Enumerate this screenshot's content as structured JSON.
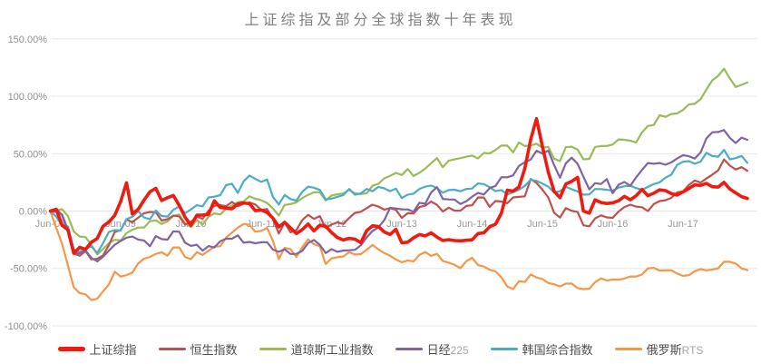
{
  "title": "上证综指及部分全球指数十年表现",
  "chart_data": {
    "type": "line",
    "title": "上证综指及部分全球指数十年表现",
    "xlabel": "",
    "ylabel": "",
    "ylim": [
      -100,
      150
    ],
    "grid": "horizontal",
    "legend_position": "bottom",
    "y_ticks": [
      {
        "value": 150,
        "label": "150.00%"
      },
      {
        "value": 100,
        "label": "100.00%"
      },
      {
        "value": 50,
        "label": "50.00%"
      },
      {
        "value": 0,
        "label": "0.00%"
      },
      {
        "value": -50,
        "label": "-50.00%"
      },
      {
        "value": -100,
        "label": "-100.00%"
      }
    ],
    "x_tick_labels": [
      "Jun-08",
      "Jun-09",
      "Jun-10",
      "Jun-11",
      "Jun-12",
      "Jun-13",
      "Jun-14",
      "Jun-15",
      "Jun-16",
      "Jun-17"
    ],
    "x_months_per_point": 1,
    "series": [
      {
        "id": "sse",
        "name": "上证综指",
        "color": "#ED1B10",
        "width": 3.6,
        "values": [
          0,
          1.5,
          -12.4,
          -16.2,
          -36.8,
          -31.6,
          -33.4,
          -27.2,
          -23.9,
          -13.3,
          -9.4,
          -3.8,
          8.2,
          24.7,
          -2.5,
          1.6,
          9.5,
          16.8,
          19.8,
          9.2,
          11.6,
          13.6,
          4.9,
          -5.3,
          -12.4,
          -3.6,
          -3.5,
          -2.9,
          8.9,
          3.1,
          2.6,
          2.0,
          6.2,
          7.0,
          6.4,
          0.3,
          0.9,
          -1.3,
          -6.2,
          -13.8,
          -9.8,
          -14.7,
          -19.6,
          -16.2,
          -11.3,
          -17.3,
          -12.4,
          -13.3,
          -18.7,
          -23.1,
          -25.2,
          -23.8,
          -24.4,
          -27.6,
          -17.1,
          -12.8,
          -13.6,
          -18.2,
          -20.4,
          -15.9,
          -27.7,
          -27.1,
          -23.3,
          -20.5,
          -21.7,
          -18.9,
          -22.7,
          -25.7,
          -24.9,
          -25.7,
          -25.9,
          -25.5,
          -25.1,
          -19.6,
          -19.0,
          -13.6,
          -11.5,
          -1.9,
          18.2,
          17.3,
          21.0,
          37.0,
          62.3,
          80.5,
          56.3,
          33.9,
          17.2,
          11.6,
          23.6,
          25.9,
          29.3,
          0.1,
          -1.8,
          9.8,
          7.4,
          6.6,
          7.1,
          8.9,
          12.8,
          9.8,
          13.3,
          18.8,
          13.4,
          15.5,
          18.5,
          17.8,
          15.3,
          13.9,
          16.7,
          19.6,
          22.8,
          22.4,
          24.0,
          21.2,
          20.9,
          25.0,
          19.1,
          15.8,
          12.6,
          11.0
        ]
      },
      {
        "id": "hsi",
        "name": "恒生指数",
        "color": "#C0504D",
        "width": 2.2,
        "values": [
          0,
          2.0,
          -3.6,
          -18.6,
          -37.1,
          -38.9,
          -34.9,
          -42.1,
          -41.6,
          -38.7,
          -29.6,
          -18.3,
          -16.6,
          -7.3,
          -9.8,
          -5.7,
          -1.9,
          -0.8,
          -1.1,
          -8.3,
          -7.1,
          -3.9,
          -4.7,
          -11.8,
          -9.3,
          -4.9,
          -6.7,
          0.2,
          4.5,
          5.2,
          4.2,
          7.9,
          4.3,
          6.3,
          7.4,
          5.7,
          1.0,
          1.7,
          -6.9,
          -19.7,
          -9.9,
          -18.6,
          -16.6,
          -7.8,
          -3.3,
          -6.8,
          -4.4,
          -14.6,
          -11.8,
          -9.9,
          -11.2,
          -6.1,
          -1.6,
          -0.6,
          2.5,
          5.5,
          3.9,
          1.3,
          2.5,
          1.0,
          -5.9,
          -1.9,
          -2.1,
          3.5,
          4.7,
          8.3,
          5.4,
          -0.4,
          2.9,
          0.4,
          0.2,
          4.4,
          5.0,
          11.9,
          11.8,
          3.6,
          8.8,
          8.3,
          6.8,
          11.9,
          12.3,
          12.8,
          27.8,
          24.5,
          18.7,
          11.9,
          -1.5,
          -5.7,
          2.5,
          0.2,
          -0.9,
          -12.4,
          -13.3,
          -6.4,
          -3.7,
          -5.5,
          -5.9,
          -0.4,
          3.5,
          5.5,
          3.9,
          3.3,
          0.0,
          6.0,
          8.7,
          9.4,
          11.5,
          16.3,
          17.0,
          22.8,
          26.6,
          24.8,
          28.3,
          31.7,
          35.4,
          45.0,
          39.5,
          36.2,
          38.2,
          35.0
        ]
      },
      {
        "id": "djia",
        "name": "道琼斯工业指数",
        "color": "#9BBB59",
        "width": 2.2,
        "values": [
          0,
          0.2,
          1.7,
          -4.4,
          -17.8,
          -22.2,
          -22.7,
          -29.5,
          -37.8,
          -33.0,
          -28.0,
          -25.1,
          -25.6,
          -19.2,
          -16.3,
          -14.4,
          -14.4,
          -8.9,
          -8.1,
          -11.3,
          -9.0,
          -4.3,
          -3.0,
          -10.7,
          -13.9,
          -7.8,
          -11.8,
          -5.0,
          -2.0,
          -3.0,
          2.0,
          4.8,
          7.7,
          8.5,
          12.9,
          10.7,
          9.4,
          7.0,
          2.3,
          -3.9,
          5.3,
          6.1,
          7.6,
          11.3,
          14.1,
          16.4,
          16.4,
          9.2,
          13.5,
          14.6,
          15.3,
          18.4,
          15.4,
          14.8,
          15.5,
          22.1,
          23.8,
          28.5,
          30.7,
          33.2,
          31.4,
          36.6,
          30.5,
          33.3,
          37.0,
          41.7,
          46.1,
          38.3,
          43.8,
          45.0,
          46.1,
          47.3,
          48.3,
          45.9,
          50.6,
          50.2,
          53.2,
          57.1,
          57.0,
          51.2,
          59.8,
          56.6,
          57.2,
          58.7,
          55.2,
          55.9,
          45.6,
          43.5,
          55.6,
          56.1,
          53.5,
          45.1,
          45.5,
          55.8,
          56.6,
          56.7,
          58.0,
          62.4,
          62.1,
          61.3,
          59.8,
          68.5,
          74.1,
          75.0,
          83.4,
          82.1,
          84.5,
          85.1,
          88.1,
          92.9,
          93.4,
          97.4,
          106.0,
          113.9,
          117.8,
          124.0,
          115.5,
          108.0,
          110.0,
          112.0
        ]
      },
      {
        "id": "nikkei",
        "name": "日经225",
        "color": "#8064A2",
        "width": 2.2,
        "values": [
          0,
          -0.8,
          -3.0,
          -16.5,
          -36.4,
          -36.9,
          -34.3,
          -40.7,
          -43.9,
          -39.8,
          -34.5,
          -29.4,
          -26.1,
          -23.2,
          -22.2,
          -24.8,
          -25.6,
          -30.7,
          -21.8,
          -24.4,
          -24.9,
          -17.7,
          -18.0,
          -27.5,
          -30.4,
          -29.3,
          -34.5,
          -30.5,
          -31.7,
          -26.3,
          -24.1,
          -24.1,
          -21.2,
          -27.6,
          -26.9,
          -28.1,
          -27.2,
          -27.1,
          -33.6,
          -35.5,
          -33.3,
          -37.4,
          -37.3,
          -34.7,
          -27.9,
          -25.2,
          -29.4,
          -36.6,
          -33.2,
          -35.5,
          -34.4,
          -34.2,
          -33.8,
          -29.9,
          -22.9,
          -17.4,
          -14.3,
          -8.0,
          2.8,
          2.2,
          1.5,
          1.4,
          -0.7,
          7.2,
          6.3,
          16.2,
          20.8,
          10.6,
          10.1,
          10.0,
          6.1,
          8.5,
          12.5,
          15.9,
          14.4,
          20.0,
          21.8,
          29.5,
          29.4,
          31.1,
          39.4,
          42.5,
          44.8,
          52.5,
          50.1,
          52.7,
          40.1,
          29.0,
          41.6,
          46.5,
          41.2,
          29.9,
          18.9,
          24.3,
          23.6,
          27.8,
          15.5,
          22.9,
          25.3,
          22.0,
          29.3,
          35.8,
          41.8,
          41.2,
          41.8,
          40.3,
          42.4,
          45.8,
          48.6,
          47.8,
          45.7,
          51.0,
          63.3,
          68.6,
          68.9,
          70.5,
          63.7,
          59.2,
          64.0,
          62.0
        ]
      },
      {
        "id": "kospi",
        "name": "韩国综合指数",
        "color": "#4BACC6",
        "width": 2.2,
        "values": [
          0,
          -4.8,
          -12.0,
          -13.5,
          -33.5,
          -35.7,
          -32.9,
          -30.6,
          -36.5,
          -28.0,
          -18.2,
          -16.6,
          -17.0,
          -7.0,
          -5.0,
          -0.1,
          -5.6,
          -7.1,
          0.5,
          -4.3,
          -4.8,
          1.1,
          4.0,
          -2.0,
          1.4,
          5.1,
          4.1,
          11.9,
          12.5,
          13.8,
          22.5,
          23.7,
          15.8,
          25.9,
          30.9,
          28.0,
          25.5,
          27.4,
          12.3,
          5.7,
          14.0,
          10.4,
          9.1,
          16.8,
          21.3,
          20.3,
          18.4,
          10.1,
          10.8,
          12.4,
          13.8,
          19.2,
          14.2,
          15.4,
          19.3,
          17.2,
          21.0,
          19.8,
          17.3,
          19.5,
          11.3,
          14.3,
          15.1,
          19.3,
          21.3,
          22.2,
          20.1,
          16.0,
          18.3,
          18.6,
          17.2,
          19.2,
          19.6,
          24.0,
          23.5,
          20.7,
          17.3,
          18.3,
          14.5,
          16.4,
          18.6,
          21.9,
          27.1,
          26.3,
          23.9,
          21.3,
          16.0,
          17.3,
          21.2,
          19.0,
          17.1,
          14.2,
          14.5,
          19.2,
          19.1,
          18.5,
          17.7,
          20.4,
          21.6,
          22.1,
          20.0,
          18.5,
          21.0,
          23.5,
          25.0,
          29.0,
          31.7,
          40.2,
          42.9,
          43.5,
          41.2,
          43.0,
          50.7,
          47.9,
          47.4,
          53.3,
          45.0,
          46.1,
          48.0,
          42.0
        ]
      },
      {
        "id": "rts",
        "name": "俄罗斯RTS",
        "color": "#F79646",
        "width": 2.2,
        "values": [
          0,
          -14.6,
          -28.5,
          -47.4,
          -66.4,
          -71.4,
          -72.6,
          -77.5,
          -76.4,
          -70.0,
          -63.9,
          -52.8,
          -57.1,
          -55.8,
          -53.7,
          -45.6,
          -41.5,
          -39.9,
          -37.3,
          -36.0,
          -38.8,
          -31.7,
          -31.7,
          -39.9,
          -41.9,
          -35.8,
          -38.3,
          -34.5,
          -31.1,
          -30.7,
          -23.1,
          -18.8,
          -14.5,
          -11.2,
          -12.0,
          -18.0,
          -17.2,
          -14.7,
          -26.1,
          -41.8,
          -32.1,
          -33.1,
          -40.0,
          -31.5,
          -24.7,
          -28.9,
          -30.8,
          -46.1,
          -41.3,
          -40.2,
          -39.6,
          -35.9,
          -37.8,
          -37.6,
          -33.7,
          -29.6,
          -33.4,
          -36.6,
          -38.9,
          -42.2,
          -44.6,
          -43.0,
          -43.9,
          -38.3,
          -35.7,
          -39.1,
          -37.3,
          -43.5,
          -45.0,
          -46.8,
          -49.8,
          -43.7,
          -40.7,
          -47.1,
          -48.3,
          -51.2,
          -52.6,
          -57.7,
          -65.7,
          -68.0,
          -61.0,
          -61.8,
          -55.3,
          -57.9,
          -59.2,
          -62.7,
          -63.8,
          -65.7,
          -63.3,
          -63.2,
          -67.1,
          -68.0,
          -67.7,
          -62.0,
          -58.7,
          -60.5,
          -59.6,
          -59.8,
          -58.8,
          -57.0,
          -57.0,
          -55.3,
          -50.0,
          -49.5,
          -51.9,
          -51.6,
          -51.6,
          -54.4,
          -56.5,
          -55.9,
          -52.4,
          -50.6,
          -51.7,
          -50.9,
          -49.9,
          -44.2,
          -44.2,
          -45.8,
          -50.0,
          -51.5
        ]
      }
    ]
  }
}
